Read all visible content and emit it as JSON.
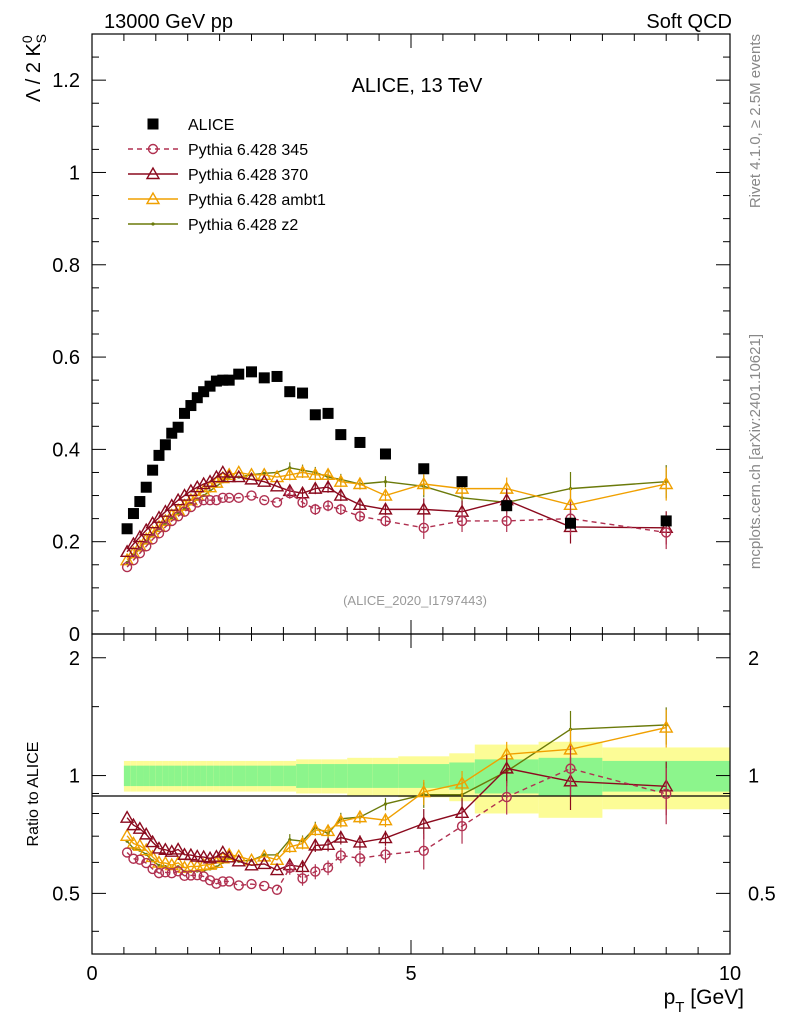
{
  "header": {
    "left": "13000 GeV pp",
    "right": "Soft QCD"
  },
  "side": {
    "rivet": "Rivet 4.1.0, ≥ 2.5M events",
    "url": "mcplots.cern.ch [arXiv:2401.10621]"
  },
  "watermark": "(ALICE_2020_I1797443)",
  "colors": {
    "alice": "#000000",
    "p345": "#b03050",
    "p370": "#8b0a1e",
    "ambt1": "#f0a000",
    "z2": "#6b7a0a",
    "band_inner": "#8cf58c",
    "band_outer": "#fcfc96"
  },
  "chart_data": [
    {
      "type": "scatter",
      "panel": "main",
      "title": "ALICE, 13 TeV",
      "xlabel": "",
      "ylabel": "Λ / 2 K⁰S",
      "xlim": [
        0,
        10
      ],
      "ylim": [
        0,
        1.3
      ],
      "yticks": [
        "0",
        "0.2",
        "0.4",
        "0.6",
        "0.8",
        "1",
        "1.2"
      ],
      "x": [
        0.55,
        0.65,
        0.75,
        0.85,
        0.95,
        1.05,
        1.15,
        1.25,
        1.35,
        1.45,
        1.55,
        1.65,
        1.75,
        1.85,
        1.95,
        2.05,
        2.15,
        2.3,
        2.5,
        2.7,
        2.9,
        3.1,
        3.3,
        3.5,
        3.7,
        3.9,
        4.2,
        4.6,
        5.2,
        5.8,
        6.5,
        7.5,
        9.0
      ],
      "series": [
        {
          "name": "ALICE",
          "marker": "square",
          "values": [
            0.228,
            0.261,
            0.287,
            0.318,
            0.355,
            0.387,
            0.41,
            0.435,
            0.448,
            0.478,
            0.495,
            0.512,
            0.525,
            0.537,
            0.548,
            0.55,
            0.55,
            0.563,
            0.568,
            0.555,
            0.558,
            0.525,
            0.522,
            0.475,
            0.478,
            0.432,
            0.415,
            0.39,
            0.358,
            0.33,
            0.278,
            0.24,
            0.245
          ]
        },
        {
          "name": "Pythia 6.428 345",
          "marker": "circle",
          "dashed": true,
          "values": [
            0.145,
            0.16,
            0.175,
            0.19,
            0.205,
            0.218,
            0.232,
            0.245,
            0.255,
            0.265,
            0.275,
            0.285,
            0.29,
            0.29,
            0.29,
            0.295,
            0.295,
            0.295,
            0.3,
            0.29,
            0.285,
            0.305,
            0.285,
            0.27,
            0.278,
            0.27,
            0.255,
            0.245,
            0.23,
            0.245,
            0.245,
            0.25,
            0.22
          ]
        },
        {
          "name": "Pythia 6.428 370",
          "marker": "triangle",
          "values": [
            0.178,
            0.195,
            0.21,
            0.225,
            0.24,
            0.252,
            0.265,
            0.278,
            0.29,
            0.3,
            0.31,
            0.318,
            0.325,
            0.33,
            0.34,
            0.35,
            0.34,
            0.34,
            0.335,
            0.33,
            0.32,
            0.31,
            0.305,
            0.315,
            0.318,
            0.3,
            0.28,
            0.27,
            0.27,
            0.265,
            0.29,
            0.232,
            0.23
          ]
        },
        {
          "name": "Pythia 6.428 ambt1",
          "marker": "triangle",
          "values": [
            0.16,
            0.175,
            0.19,
            0.205,
            0.22,
            0.232,
            0.245,
            0.257,
            0.268,
            0.278,
            0.29,
            0.3,
            0.31,
            0.318,
            0.328,
            0.338,
            0.345,
            0.35,
            0.345,
            0.345,
            0.34,
            0.345,
            0.35,
            0.345,
            0.345,
            0.33,
            0.325,
            0.3,
            0.325,
            0.315,
            0.315,
            0.28,
            0.325
          ]
        },
        {
          "name": "Pythia 6.428 z2",
          "marker": "dot",
          "values": [
            0.155,
            0.17,
            0.185,
            0.2,
            0.215,
            0.228,
            0.24,
            0.252,
            0.262,
            0.272,
            0.282,
            0.292,
            0.3,
            0.31,
            0.32,
            0.33,
            0.34,
            0.34,
            0.345,
            0.348,
            0.35,
            0.36,
            0.355,
            0.35,
            0.34,
            0.335,
            0.325,
            0.33,
            0.32,
            0.295,
            0.285,
            0.315,
            0.33
          ]
        }
      ]
    },
    {
      "type": "line",
      "panel": "ratio",
      "ylabel": "Ratio to ALICE",
      "xlabel": "p_T [GeV]",
      "xlim": [
        0,
        10
      ],
      "ylim": [
        0.35,
        2.3
      ],
      "xticks": [
        "0",
        "5",
        "10"
      ],
      "yticks": [
        "0.5",
        "1",
        "2"
      ],
      "band_edges": [
        0.5,
        0.6,
        0.7,
        0.8,
        0.9,
        1.0,
        1.1,
        1.2,
        1.3,
        1.4,
        1.5,
        1.6,
        1.7,
        1.8,
        1.9,
        2.0,
        2.1,
        2.2,
        2.4,
        2.6,
        2.8,
        3.0,
        3.2,
        3.4,
        3.6,
        3.8,
        4.0,
        4.4,
        4.8,
        5.6,
        6.0,
        7.0,
        8.0,
        10.0
      ],
      "band_inner": [
        0.06,
        0.06,
        0.06,
        0.06,
        0.06,
        0.06,
        0.06,
        0.06,
        0.06,
        0.06,
        0.06,
        0.06,
        0.06,
        0.06,
        0.06,
        0.06,
        0.06,
        0.06,
        0.06,
        0.06,
        0.06,
        0.06,
        0.07,
        0.07,
        0.07,
        0.07,
        0.07,
        0.07,
        0.07,
        0.08,
        0.1,
        0.11,
        0.09,
        0.08
      ],
      "band_outer": [
        0.09,
        0.09,
        0.09,
        0.09,
        0.09,
        0.09,
        0.09,
        0.09,
        0.09,
        0.09,
        0.09,
        0.09,
        0.09,
        0.09,
        0.09,
        0.09,
        0.09,
        0.09,
        0.09,
        0.09,
        0.09,
        0.09,
        0.1,
        0.1,
        0.1,
        0.1,
        0.11,
        0.11,
        0.12,
        0.14,
        0.2,
        0.22,
        0.18,
        0.17
      ]
    }
  ]
}
